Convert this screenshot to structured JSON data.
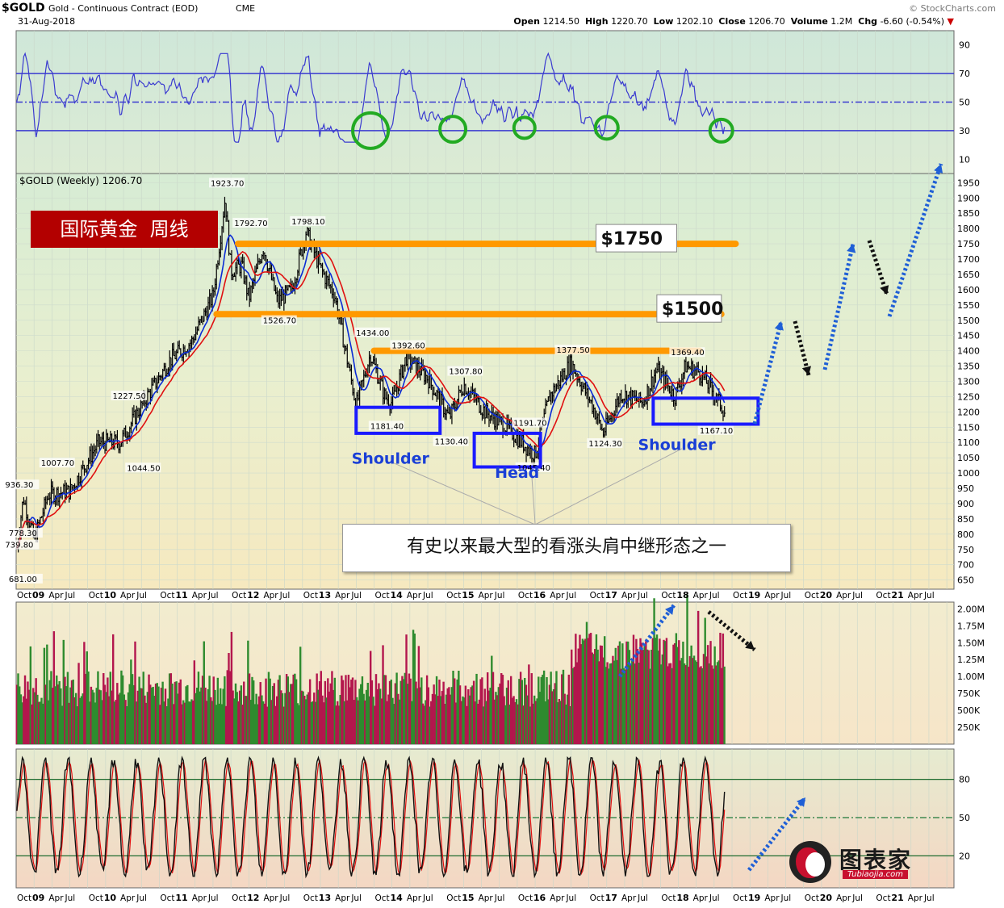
{
  "header": {
    "symbol": "$GOLD",
    "name": "Gold - Continuous Contract (EOD)",
    "exchange": "CME",
    "date": "31-Aug-2018",
    "watermark": "© StockCharts.com",
    "ohlc": {
      "open_label": "Open",
      "open": "1214.50",
      "high_label": "High",
      "high": "1220.70",
      "low_label": "Low",
      "low": "1202.10",
      "close_label": "Close",
      "close": "1206.70",
      "volume_label": "Volume",
      "volume": "1.2M",
      "chg_label": "Chg",
      "chg": "-6.60 (-0.54%)"
    }
  },
  "chart_data": [
    {
      "type": "line",
      "panel": "rsi",
      "yticks": [
        "90",
        "70",
        "50",
        "30",
        "10"
      ],
      "ylim": [
        0,
        100
      ],
      "levels": [
        70,
        50,
        30
      ],
      "highlight_circles": 5
    },
    {
      "type": "candlestick",
      "panel": "price",
      "legend": "$GOLD (Weekly) 1206.70",
      "ylim": [
        620,
        1980
      ],
      "yticks": [
        "1950",
        "1900",
        "1850",
        "1800",
        "1750",
        "1700",
        "1650",
        "1600",
        "1550",
        "1500",
        "1450",
        "1400",
        "1350",
        "1300",
        "1250",
        "1200",
        "1150",
        "1100",
        "1050",
        "1000",
        "950",
        "900",
        "850",
        "800",
        "750",
        "700",
        "650"
      ],
      "x_axis": [
        "Oct",
        "09",
        "Apr",
        "Jul",
        "Oct",
        "10",
        "Apr",
        "Jul",
        "Oct",
        "11",
        "Apr",
        "Jul",
        "Oct",
        "12",
        "Apr",
        "Jul",
        "Oct",
        "13",
        "Apr",
        "Jul",
        "Oct",
        "14",
        "Apr",
        "Jul",
        "Oct",
        "15",
        "Apr",
        "Jul",
        "Oct",
        "16",
        "Apr",
        "Jul",
        "Oct",
        "17",
        "Apr",
        "Jul",
        "Oct",
        "18",
        "Apr",
        "Jul",
        "Oct",
        "19",
        "Apr",
        "Jul",
        "Oct",
        "20",
        "Apr",
        "Jul",
        "Oct",
        "21",
        "Apr",
        "Jul"
      ],
      "x_year_labels": [
        "09",
        "10",
        "11",
        "12",
        "13",
        "14",
        "15",
        "16",
        "17",
        "18",
        "19",
        "20",
        "21"
      ],
      "price_path": [
        [
          2008.75,
          735
        ],
        [
          2008.85,
          920
        ],
        [
          2009.0,
          780
        ],
        [
          2009.2,
          930
        ],
        [
          2009.5,
          940
        ],
        [
          2009.9,
          1100
        ],
        [
          2010.2,
          1100
        ],
        [
          2010.5,
          1220
        ],
        [
          2010.9,
          1370
        ],
        [
          2011.2,
          1430
        ],
        [
          2011.5,
          1580
        ],
        [
          2011.67,
          1900
        ],
        [
          2011.75,
          1660
        ],
        [
          2011.9,
          1680
        ],
        [
          2012.0,
          1570
        ],
        [
          2012.2,
          1740
        ],
        [
          2012.4,
          1560
        ],
        [
          2012.6,
          1600
        ],
        [
          2012.8,
          1790
        ],
        [
          2013.0,
          1670
        ],
        [
          2013.2,
          1580
        ],
        [
          2013.35,
          1400
        ],
        [
          2013.5,
          1220
        ],
        [
          2013.7,
          1390
        ],
        [
          2013.9,
          1250
        ],
        [
          2014.0,
          1230
        ],
        [
          2014.2,
          1380
        ],
        [
          2014.5,
          1310
        ],
        [
          2014.8,
          1180
        ],
        [
          2015.0,
          1290
        ],
        [
          2015.3,
          1200
        ],
        [
          2015.6,
          1150
        ],
        [
          2015.9,
          1080
        ],
        [
          2016.0,
          1060
        ],
        [
          2016.2,
          1250
        ],
        [
          2016.5,
          1360
        ],
        [
          2016.8,
          1220
        ],
        [
          2016.95,
          1130
        ],
        [
          2017.2,
          1260
        ],
        [
          2017.5,
          1230
        ],
        [
          2017.7,
          1340
        ],
        [
          2017.95,
          1250
        ],
        [
          2018.1,
          1350
        ],
        [
          2018.3,
          1330
        ],
        [
          2018.5,
          1260
        ],
        [
          2018.65,
          1200
        ]
      ],
      "annotations": [
        {
          "label": "1923.70",
          "x": 2011.67,
          "y": 1923.7
        },
        {
          "label": "1792.70",
          "x": 2012.0,
          "y": 1792.7
        },
        {
          "label": "1798.10",
          "x": 2012.8,
          "y": 1798.1
        },
        {
          "label": "1526.70",
          "x": 2012.4,
          "y": 1526.7
        },
        {
          "label": "1434.00",
          "x": 2013.7,
          "y": 1434.0
        },
        {
          "label": "1392.60",
          "x": 2014.2,
          "y": 1392.6
        },
        {
          "label": "1307.80",
          "x": 2015.0,
          "y": 1307.8
        },
        {
          "label": "1191.70",
          "x": 2015.9,
          "y": 1191.7
        },
        {
          "label": "1377.50",
          "x": 2016.5,
          "y": 1377.5
        },
        {
          "label": "1369.40",
          "x": 2018.1,
          "y": 1369.4
        },
        {
          "label": "1181.40",
          "x": 2013.9,
          "y": 1181.4
        },
        {
          "label": "1130.40",
          "x": 2014.8,
          "y": 1130.4
        },
        {
          "label": "1045.40",
          "x": 2015.95,
          "y": 1045.4
        },
        {
          "label": "1124.30",
          "x": 2016.95,
          "y": 1124.3
        },
        {
          "label": "1167.10",
          "x": 2018.5,
          "y": 1167.1
        },
        {
          "label": "1227.50",
          "x": 2010.3,
          "y": 1227.5
        },
        {
          "label": "1044.50",
          "x": 2010.5,
          "y": 1044.5
        },
        {
          "label": "1007.70",
          "x": 2009.3,
          "y": 1007.7
        },
        {
          "label": "936.30",
          "x": 2008.8,
          "y": 936.3
        },
        {
          "label": "778.30",
          "x": 2008.85,
          "y": 778.3
        },
        {
          "label": "739.80",
          "x": 2008.8,
          "y": 739.8
        },
        {
          "label": "681.00",
          "x": 2008.85,
          "y": 681.0
        }
      ],
      "resistance_lines": [
        {
          "y": 1750,
          "label": "$1750"
        },
        {
          "y": 1520,
          "label": "$1500"
        },
        {
          "y": 1400,
          "label": ""
        }
      ],
      "pattern_labels": [
        "Shoulder",
        "Head",
        "Shoulder"
      ],
      "title_badge": "国际黄金  周线",
      "caption": "有史以来最大型的看涨头肩中继形态之一"
    },
    {
      "type": "bar",
      "panel": "volume",
      "yticks": [
        "2.00M",
        "1.75M",
        "1.50M",
        "1.25M",
        "1.00M",
        "750K",
        "500K",
        "250K"
      ],
      "ylim": [
        0,
        2.1
      ]
    },
    {
      "type": "line",
      "panel": "stochastic",
      "yticks": [
        "80",
        "50",
        "20"
      ],
      "levels": [
        80,
        50,
        20
      ]
    }
  ],
  "logo": {
    "name": "图表家",
    "url": "Tubiaojia.com"
  },
  "colors": {
    "orange": "#ff9900",
    "blue": "#1a1aff",
    "green": "#22aa22",
    "badge": "#b30000",
    "dotted": "#1f5fd6"
  }
}
